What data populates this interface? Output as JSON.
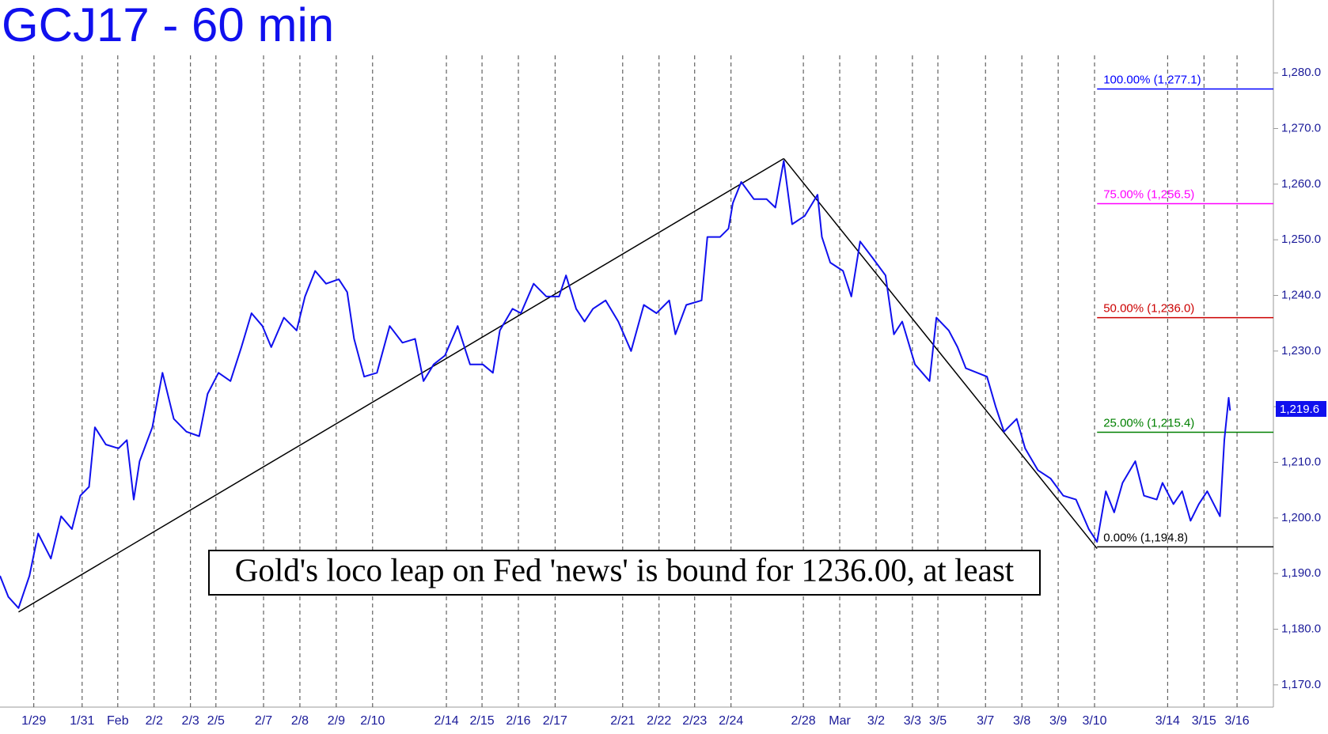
{
  "chart_data": {
    "type": "line",
    "title": "GCJ17 - 60 min",
    "color": "#1010ee",
    "x": [
      -0.93,
      -0.7,
      -0.42,
      -0.12,
      0.12,
      0.47,
      0.75,
      1.05,
      1.28,
      1.52,
      1.68,
      1.98,
      2.33,
      2.56,
      2.75,
      2.91,
      3.26,
      3.54,
      3.85,
      4.2,
      4.55,
      4.78,
      5.08,
      5.41,
      5.71,
      5.99,
      6.29,
      6.53,
      6.88,
      7.23,
      7.46,
      7.74,
      8.04,
      8.39,
      8.62,
      8.81,
      9.09,
      9.44,
      9.79,
      10.14,
      10.49,
      10.72,
      11.0,
      11.31,
      11.66,
      12.0,
      12.35,
      12.63,
      12.82,
      13.17,
      13.4,
      13.75,
      14.1,
      14.45,
      14.64,
      14.92,
      15.15,
      15.38,
      15.73,
      16.08,
      16.43,
      16.78,
      17.13,
      17.48,
      17.65,
      17.95,
      18.37,
      18.53,
      18.88,
      19.11,
      19.23,
      19.46,
      19.81,
      20.16,
      20.4,
      20.63,
      20.86,
      21.21,
      21.56,
      21.68,
      21.91,
      22.26,
      22.49,
      22.73,
      23.08,
      23.43,
      23.66,
      23.89,
      24.24,
      24.64,
      24.83,
      25.17,
      25.41,
      25.64,
      26.22,
      26.46,
      26.69,
      27.04,
      27.27,
      27.62,
      27.97,
      28.32,
      28.67,
      29.02,
      29.25,
      29.49,
      29.72,
      29.95,
      30.3,
      30.54,
      30.89,
      31.05,
      31.35,
      31.59,
      31.82,
      32.05,
      32.28,
      32.63,
      32.75,
      32.87,
      32.91
    ],
    "values": [
      1189.6,
      1185.8,
      1183.8,
      1189.6,
      1197.2,
      1192.7,
      1200.3,
      1198,
      1204,
      1205.6,
      1216.3,
      1213.2,
      1212.5,
      1214,
      1203.3,
      1210.2,
      1216.3,
      1226.1,
      1217.8,
      1215.5,
      1214.7,
      1222.3,
      1226.1,
      1224.6,
      1230.7,
      1236.8,
      1234.5,
      1230.7,
      1236,
      1233.7,
      1239.8,
      1244.4,
      1242.1,
      1242.9,
      1240.6,
      1232.2,
      1225.4,
      1226.1,
      1234.5,
      1231.5,
      1232.2,
      1224.6,
      1227.6,
      1229.2,
      1234.5,
      1227.6,
      1227.6,
      1226.1,
      1233.7,
      1237.6,
      1236.8,
      1242.1,
      1239.8,
      1239.8,
      1243.6,
      1237.6,
      1235.3,
      1237.6,
      1239.1,
      1235.3,
      1230,
      1238.3,
      1236.8,
      1239.1,
      1233,
      1238.3,
      1239.1,
      1250.5,
      1250.5,
      1252,
      1256.6,
      1260.4,
      1257.3,
      1257.3,
      1255.8,
      1264.2,
      1252.8,
      1254.3,
      1258.1,
      1250.5,
      1245.9,
      1244.4,
      1239.8,
      1249.7,
      1246.7,
      1243.6,
      1233,
      1235.3,
      1227.6,
      1224.6,
      1236,
      1233.7,
      1230.7,
      1226.9,
      1225.4,
      1220,
      1215.5,
      1217.8,
      1212.5,
      1208.6,
      1207.1,
      1204,
      1203.3,
      1198,
      1195.7,
      1204.8,
      1201,
      1206.3,
      1210.2,
      1204,
      1203.3,
      1206.3,
      1202.5,
      1204.8,
      1199.5,
      1202.5,
      1204.8,
      1200.3,
      1214,
      1221.6,
      1219.3
    ],
    "xlim": [
      -0.93,
      34.1
    ],
    "ylim": [
      1166,
      1293.1
    ],
    "yticks": [
      {
        "value": 1170,
        "label": "1,170.0"
      },
      {
        "value": 1180,
        "label": "1,180.0"
      },
      {
        "value": 1190,
        "label": "1,190.0"
      },
      {
        "value": 1200,
        "label": "1,200.0"
      },
      {
        "value": 1210,
        "label": "1,210.0"
      },
      {
        "value": 1220,
        "label": "1,220.0"
      },
      {
        "value": 1230,
        "label": "1,230.0"
      },
      {
        "value": 1240,
        "label": "1,240.0"
      },
      {
        "value": 1250,
        "label": "1,250.0"
      },
      {
        "value": 1260,
        "label": "1,260.0"
      },
      {
        "value": 1270,
        "label": "1,270.0"
      },
      {
        "value": 1280,
        "label": "1,280.0"
      }
    ],
    "xticks": [
      {
        "value": 0,
        "label": "1/29"
      },
      {
        "value": 1.33,
        "label": "1/31"
      },
      {
        "value": 2.31,
        "label": "Feb"
      },
      {
        "value": 3.31,
        "label": "2/2"
      },
      {
        "value": 4.31,
        "label": "2/3"
      },
      {
        "value": 5.01,
        "label": "2/5"
      },
      {
        "value": 6.32,
        "label": "2/7"
      },
      {
        "value": 7.32,
        "label": "2/8"
      },
      {
        "value": 8.32,
        "label": "2/9"
      },
      {
        "value": 9.32,
        "label": "2/10"
      },
      {
        "value": 11.35,
        "label": "2/14"
      },
      {
        "value": 12.33,
        "label": "2/15"
      },
      {
        "value": 13.33,
        "label": "2/16"
      },
      {
        "value": 14.34,
        "label": "2/17"
      },
      {
        "value": 16.2,
        "label": "2/21"
      },
      {
        "value": 17.2,
        "label": "2/22"
      },
      {
        "value": 18.18,
        "label": "2/23"
      },
      {
        "value": 19.18,
        "label": "2/24"
      },
      {
        "value": 21.17,
        "label": "2/28"
      },
      {
        "value": 22.17,
        "label": "Mar"
      },
      {
        "value": 23.17,
        "label": "3/2"
      },
      {
        "value": 24.17,
        "label": "3/3"
      },
      {
        "value": 24.87,
        "label": "3/5"
      },
      {
        "value": 26.18,
        "label": "3/7"
      },
      {
        "value": 27.18,
        "label": "3/8"
      },
      {
        "value": 28.18,
        "label": "3/9"
      },
      {
        "value": 29.18,
        "label": "3/10"
      },
      {
        "value": 31.19,
        "label": "3/14"
      },
      {
        "value": 32.19,
        "label": "3/15"
      },
      {
        "value": 33.1,
        "label": "3/16"
      }
    ],
    "grid": true,
    "trendlines": [
      {
        "x": [
          -0.42,
          20.63
        ],
        "y": [
          1183.1,
          1264.6
        ]
      },
      {
        "x": [
          20.63,
          29.25
        ],
        "y": [
          1264.6,
          1194.5
        ]
      }
    ],
    "fib_start": 29.25,
    "fib_levels": [
      {
        "value": 1277.1,
        "label": "100.00% (1,277.1)",
        "color": "#0000ff"
      },
      {
        "value": 1256.5,
        "label": "75.00% (1,256.5)",
        "color": "#ff00ff"
      },
      {
        "value": 1236.0,
        "label": "50.00% (1,236.0)",
        "color": "#cc0000"
      },
      {
        "value": 1215.4,
        "label": "25.00% (1,215.4)",
        "color": "#008000"
      },
      {
        "value": 1194.8,
        "label": "0.00% (1,194.8)",
        "color": "#000000"
      }
    ],
    "last_price": {
      "value": 1219.6,
      "label": "1,219.6"
    },
    "annotation": "Gold's loco leap on Fed 'news' is bound for 1236.00, at least"
  }
}
